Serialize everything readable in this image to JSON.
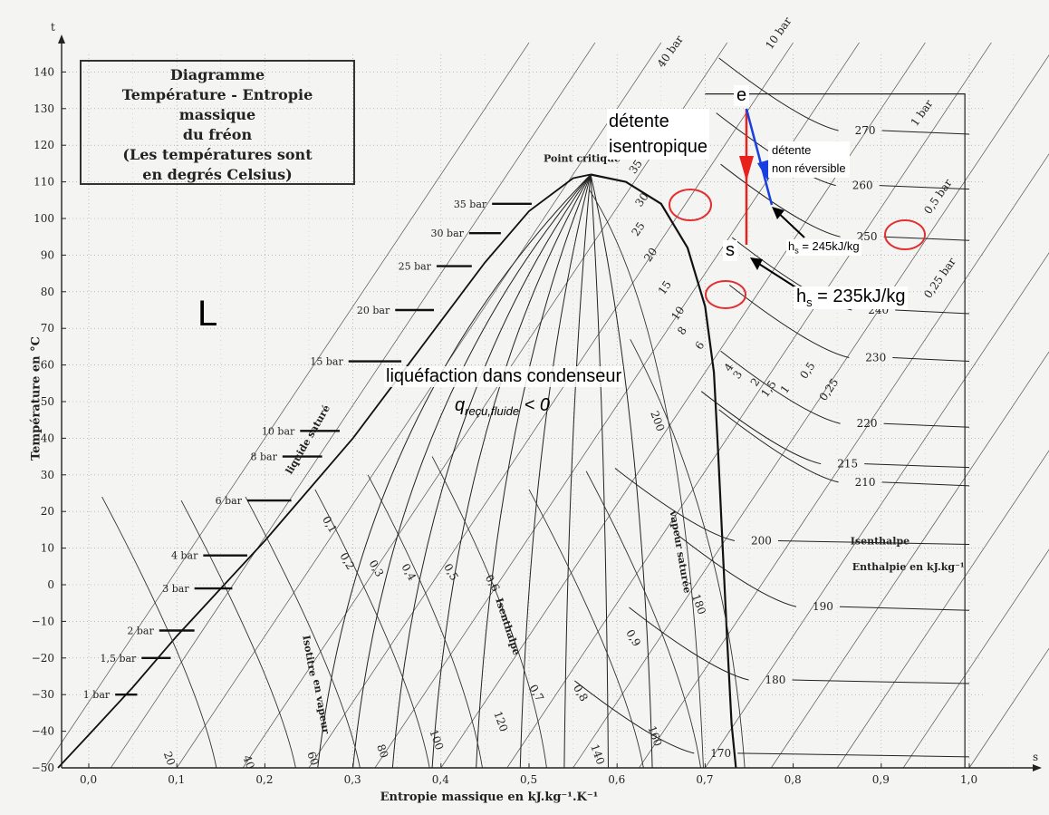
{
  "chart_data": {
    "type": "line",
    "title_lines": [
      "Diagramme",
      "Température - Entropie massique",
      "du fréon",
      "(Les températures sont",
      "en degrés Celsius)"
    ],
    "xlabel": "Entropie massique en kJ.kg⁻¹.K⁻¹",
    "ylabel": "Température en °C",
    "x_axis_letter": "s",
    "y_axis_letter": "t",
    "xlim": [
      -0.04,
      1.06
    ],
    "ylim": [
      -50,
      148
    ],
    "x_ticks": [
      0.0,
      0.1,
      0.2,
      0.3,
      0.4,
      0.5,
      0.6,
      0.7,
      0.8,
      0.9,
      1.0
    ],
    "x_tick_labels": [
      "0,0",
      "0,1",
      "0,2",
      "0,3",
      "0,4",
      "0,5",
      "0,6",
      "0,7",
      "0,8",
      "0,9",
      "1,0"
    ],
    "y_ticks": [
      -50,
      -40,
      -30,
      -20,
      -10,
      0,
      10,
      20,
      30,
      40,
      50,
      60,
      70,
      80,
      90,
      100,
      110,
      120,
      130,
      140
    ],
    "y_tick_labels": [
      "−50",
      "−40",
      "−30",
      "−20",
      "−10",
      "0",
      "10",
      "20",
      "30",
      "40",
      "50",
      "60",
      "70",
      "80",
      "90",
      "100",
      "110",
      "120",
      "130",
      "140"
    ],
    "critical_point": {
      "s": 0.57,
      "t": 112,
      "label": "Point critique"
    },
    "saturation_liquid": [
      [
        -0.035,
        -50
      ],
      [
        0.0,
        -41
      ],
      [
        0.05,
        -28
      ],
      [
        0.1,
        -14
      ],
      [
        0.15,
        -1
      ],
      [
        0.2,
        12
      ],
      [
        0.25,
        26
      ],
      [
        0.3,
        40
      ],
      [
        0.35,
        56
      ],
      [
        0.4,
        72
      ],
      [
        0.45,
        88
      ],
      [
        0.5,
        102
      ],
      [
        0.55,
        111
      ],
      [
        0.57,
        112
      ]
    ],
    "saturation_vapour": [
      [
        0.57,
        112
      ],
      [
        0.61,
        110
      ],
      [
        0.65,
        104
      ],
      [
        0.68,
        92
      ],
      [
        0.7,
        76
      ],
      [
        0.71,
        58
      ],
      [
        0.715,
        35
      ],
      [
        0.72,
        10
      ],
      [
        0.725,
        -15
      ],
      [
        0.73,
        -38
      ],
      [
        0.735,
        -50
      ]
    ],
    "pressure_bars": [
      {
        "label": "1 bar",
        "t": -30,
        "s0": 0.03,
        "s1": 0.055
      },
      {
        "label": "1,5 bar",
        "t": -20,
        "s0": 0.06,
        "s1": 0.093
      },
      {
        "label": "2 bar",
        "t": -12.5,
        "s0": 0.08,
        "s1": 0.12
      },
      {
        "label": "3 bar",
        "t": -1,
        "s0": 0.12,
        "s1": 0.163
      },
      {
        "label": "4 bar",
        "t": 8,
        "s0": 0.13,
        "s1": 0.18
      },
      {
        "label": "6 bar",
        "t": 23,
        "s0": 0.18,
        "s1": 0.23
      },
      {
        "label": "8 bar",
        "t": 35,
        "s0": 0.22,
        "s1": 0.265
      },
      {
        "label": "10 bar",
        "t": 42,
        "s0": 0.24,
        "s1": 0.285
      },
      {
        "label": "15 bar",
        "t": 61,
        "s0": 0.295,
        "s1": 0.355
      },
      {
        "label": "20 bar",
        "t": 75,
        "s0": 0.348,
        "s1": 0.392
      },
      {
        "label": "25 bar",
        "t": 87,
        "s0": 0.395,
        "s1": 0.435
      },
      {
        "label": "30 bar",
        "t": 96,
        "s0": 0.432,
        "s1": 0.468
      },
      {
        "label": "35 bar",
        "t": 104,
        "s0": 0.458,
        "s1": 0.503
      }
    ],
    "quality_labels": [
      {
        "label": "0,1",
        "s": 0.265,
        "t": 18
      },
      {
        "label": "0,2",
        "s": 0.285,
        "t": 8
      },
      {
        "label": "0,3",
        "s": 0.318,
        "t": 6
      },
      {
        "label": "0,4",
        "s": 0.355,
        "t": 5
      },
      {
        "label": "0,5",
        "s": 0.403,
        "t": 5
      },
      {
        "label": "0,6",
        "s": 0.45,
        "t": 2
      },
      {
        "label": "0,7",
        "s": 0.5,
        "t": -28
      },
      {
        "label": "0,8",
        "s": 0.55,
        "t": -28
      },
      {
        "label": "0,9",
        "s": 0.61,
        "t": -13
      }
    ],
    "isenthalp_liquid_labels": [
      {
        "label": "20",
        "s": 0.085,
        "t": -46
      },
      {
        "label": "40",
        "s": 0.175,
        "t": -47
      },
      {
        "label": "60",
        "s": 0.248,
        "t": -46
      },
      {
        "label": "80",
        "s": 0.327,
        "t": -44
      },
      {
        "label": "100",
        "s": 0.387,
        "t": -40
      },
      {
        "label": "120",
        "s": 0.46,
        "t": -35
      },
      {
        "label": "140",
        "s": 0.57,
        "t": -44
      },
      {
        "label": "160",
        "s": 0.635,
        "t": -39
      },
      {
        "label": "180",
        "s": 0.685,
        "t": -3
      },
      {
        "label": "200",
        "s": 0.638,
        "t": 47
      }
    ],
    "isenthalp_vapour_labels": [
      {
        "label": "270",
        "s": 0.87,
        "t": 124
      },
      {
        "label": "260",
        "s": 0.867,
        "t": 109
      },
      {
        "label": "250",
        "s": 0.872,
        "t": 95
      },
      {
        "label": "240",
        "s": 0.885,
        "t": 75
      },
      {
        "label": "230",
        "s": 0.882,
        "t": 62
      },
      {
        "label": "220",
        "s": 0.872,
        "t": 44
      },
      {
        "label": "215",
        "s": 0.85,
        "t": 33
      },
      {
        "label": "210",
        "s": 0.87,
        "t": 28
      },
      {
        "label": "200",
        "s": 0.752,
        "t": 12
      },
      {
        "label": "190",
        "s": 0.822,
        "t": -6
      },
      {
        "label": "180",
        "s": 0.768,
        "t": -26
      },
      {
        "label": "170",
        "s": 0.706,
        "t": -46
      }
    ],
    "isobar_vapour_labels": [
      {
        "label": "40 bar",
        "s": 0.652,
        "t": 141
      },
      {
        "label": "35",
        "s": 0.62,
        "t": 112
      },
      {
        "label": "30",
        "s": 0.627,
        "t": 103
      },
      {
        "label": "25",
        "s": 0.623,
        "t": 95
      },
      {
        "label": "20",
        "s": 0.637,
        "t": 88
      },
      {
        "label": "15",
        "s": 0.653,
        "t": 79
      },
      {
        "label": "10",
        "s": 0.668,
        "t": 72
      },
      {
        "label": "8",
        "s": 0.675,
        "t": 68
      },
      {
        "label": "6",
        "s": 0.695,
        "t": 64
      },
      {
        "label": "4",
        "s": 0.728,
        "t": 58
      },
      {
        "label": "3",
        "s": 0.738,
        "t": 56
      },
      {
        "label": "2",
        "s": 0.758,
        "t": 54
      },
      {
        "label": "1,5",
        "s": 0.77,
        "t": 51
      },
      {
        "label": "1",
        "s": 0.792,
        "t": 52
      },
      {
        "label": "0,5",
        "s": 0.814,
        "t": 56
      },
      {
        "label": "0,25",
        "s": 0.836,
        "t": 50
      },
      {
        "label": "10 bar",
        "s": 0.775,
        "t": 146
      },
      {
        "label": "1 bar",
        "s": 0.94,
        "t": 125
      },
      {
        "label": "0,5 bar",
        "s": 0.955,
        "t": 101
      },
      {
        "label": "0,25 bar",
        "s": 0.955,
        "t": 78
      }
    ],
    "text_annotations": [
      {
        "text": "liquide saturé",
        "s": 0.23,
        "t": 30
      },
      {
        "text": "vapeur saturée",
        "s": 0.66,
        "t": 20
      },
      {
        "text": "Isotitre",
        "s": 0.243,
        "t": -14
      },
      {
        "text": "en vapeur",
        "s": 0.255,
        "t": -26
      },
      {
        "text": "Isenthalpe",
        "s": 0.462,
        "t": -4
      },
      {
        "text": "Isenthalpe",
        "s": 0.865,
        "t": 11
      },
      {
        "text": "Enthalpie en kJ.kg⁻¹",
        "s": 0.867,
        "t": 4
      }
    ],
    "overlay": {
      "L_label": "L",
      "liquefaction_line1": "liquéfaction dans condenseur",
      "liquefaction_q": "q",
      "liquefaction_sub": "reçu,fluide",
      "liquefaction_rest": " < 0",
      "point_e": {
        "label": "e",
        "s": 0.656,
        "t": 134
      },
      "point_s": {
        "label": "s",
        "s": 0.656,
        "t": 92
      },
      "detente_isentropique": [
        "détente",
        "isentropique"
      ],
      "detente_non_rev": [
        "détente",
        "non réversible"
      ],
      "hs1": {
        "pre": "h",
        "sub": "s",
        "post": " = 245kJ/kg"
      },
      "hs2": {
        "pre": "h",
        "sub": "s",
        "post": " = 235kJ/kg"
      },
      "circled": [
        "30",
        "15",
        "250"
      ],
      "colors": {
        "red": "#e8211c",
        "blue": "#1a3fe0",
        "circle": "#e03030"
      }
    }
  }
}
